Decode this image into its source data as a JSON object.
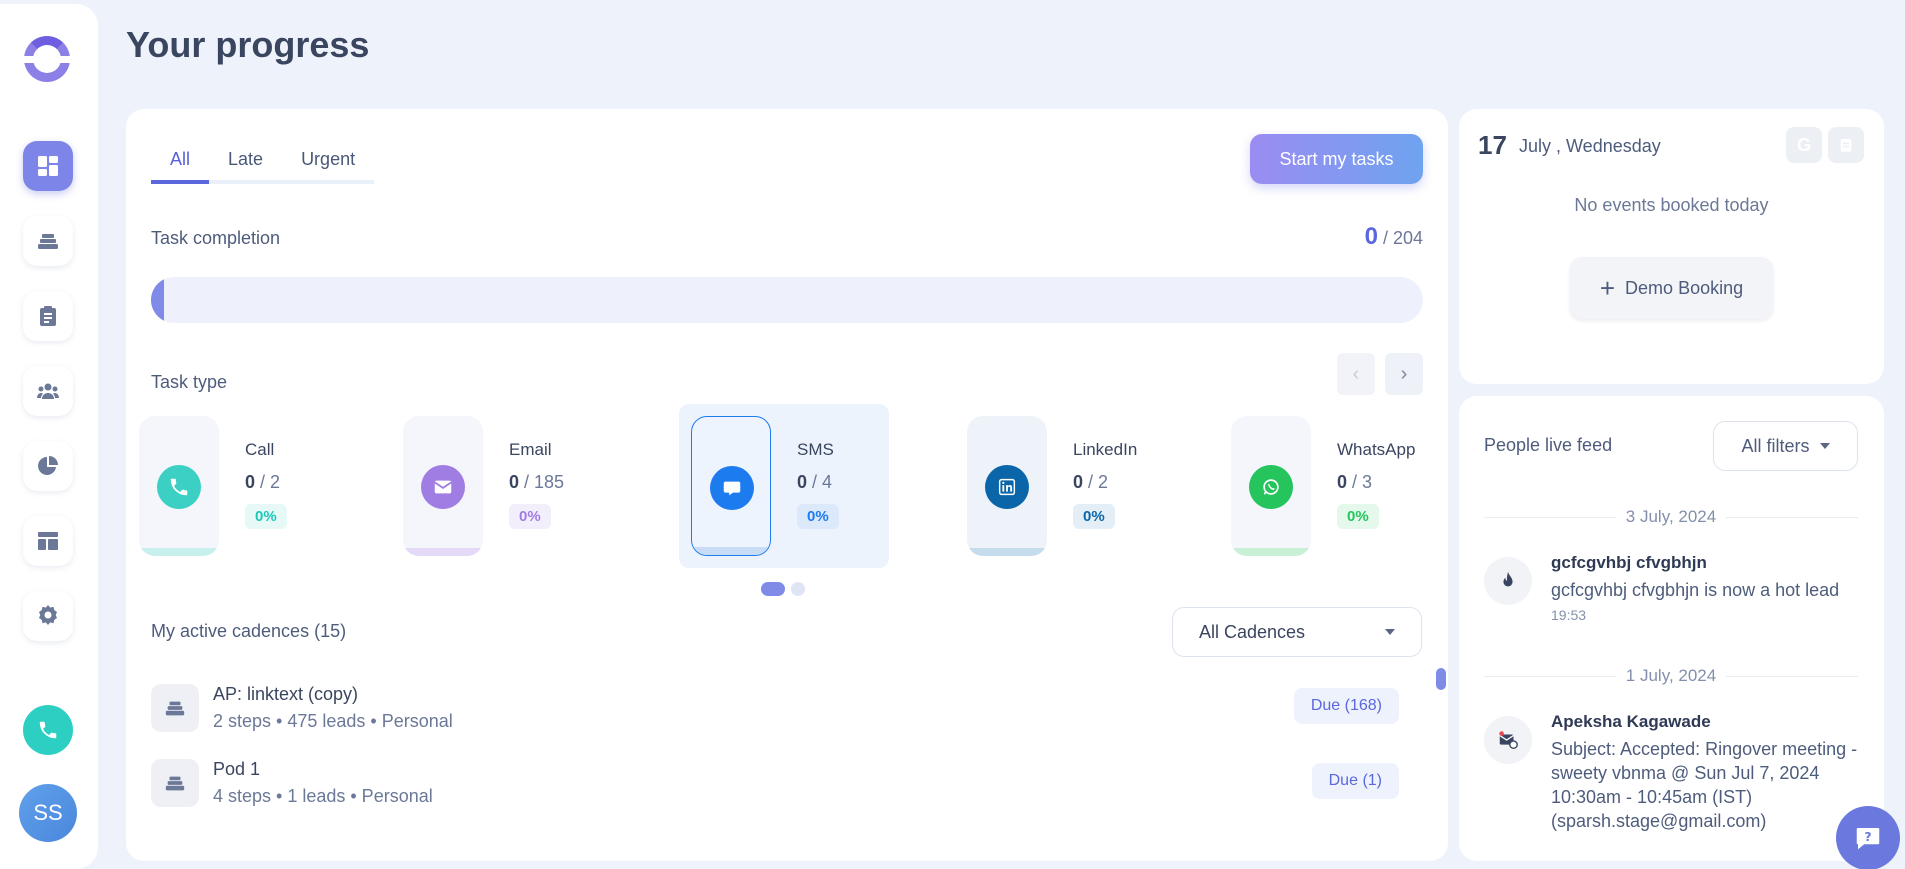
{
  "sidebar": {
    "items": [
      {
        "name": "dashboard"
      },
      {
        "name": "cadences"
      },
      {
        "name": "tasks"
      },
      {
        "name": "people"
      },
      {
        "name": "reports"
      },
      {
        "name": "templates"
      },
      {
        "name": "settings"
      }
    ],
    "avatar_initials": "SS"
  },
  "page_title": "Your progress",
  "main": {
    "tabs": [
      "All",
      "Late",
      "Urgent"
    ],
    "active_tab": "All",
    "start_button": "Start my tasks",
    "completion": {
      "label": "Task completion",
      "done": "0",
      "total": "/ 204",
      "progress": 0.01
    },
    "task_type_label": "Task type",
    "task_types": [
      {
        "name": "Call",
        "done": "0",
        "total": "/ 2",
        "pct": "0%",
        "color": "#3ccfc4"
      },
      {
        "name": "Email",
        "done": "0",
        "total": "/ 185",
        "pct": "0%",
        "color": "#a07de2"
      },
      {
        "name": "SMS",
        "done": "0",
        "total": "/ 4",
        "pct": "0%",
        "color": "#1d7bf0"
      },
      {
        "name": "LinkedIn",
        "done": "0",
        "total": "/ 2",
        "pct": "0%",
        "color": "#0a66a8"
      },
      {
        "name": "WhatsApp",
        "done": "0",
        "total": "/ 3",
        "pct": "0%",
        "color": "#25c45c"
      }
    ],
    "cadences_label": "My active cadences (15)",
    "cadence_filter": "All Cadences",
    "cadences": [
      {
        "name": "AP: linktext (copy)",
        "meta": "2 steps • 475 leads • Personal",
        "due": "Due",
        "due_count": "(168)"
      },
      {
        "name": "Pod 1",
        "meta": "4 steps • 1 leads • Personal",
        "due": "Due",
        "due_count": "(1)"
      }
    ]
  },
  "calendar": {
    "day": "17",
    "date": "July , Wednesday",
    "no_events": "No events booked today",
    "demo_button": "Demo Booking"
  },
  "feed": {
    "title": "People live feed",
    "filter": "All filters",
    "groups": [
      {
        "date": "3 July, 2024",
        "name": "gcfcgvhbj cfvgbhjn",
        "text": "gcfcgvhbj cfvgbhjn is now a hot lead",
        "time": "19:53"
      },
      {
        "date": "1 July, 2024",
        "name": "Apeksha Kagawade",
        "text": "Subject: Accepted: Ringover meeting - sweety vbnma @ Sun Jul 7, 2024 10:30am - 10:45am (IST) (sparsh.stage@gmail.com)",
        "time": ""
      }
    ]
  }
}
